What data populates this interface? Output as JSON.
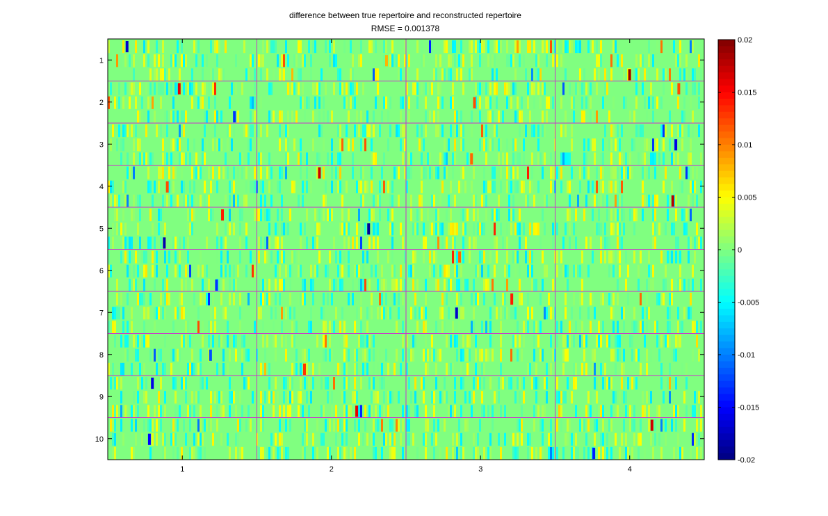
{
  "chart_data": {
    "type": "heatmap",
    "title": "difference between true repertoire and reconstructed repertoire",
    "subtitle": "RMSE = 0.001378",
    "xlabel": "",
    "ylabel": "",
    "x_categories": [
      "1",
      "2",
      "3",
      "4"
    ],
    "y_categories": [
      "1",
      "2",
      "3",
      "4",
      "5",
      "6",
      "7",
      "8",
      "9",
      "10"
    ],
    "clim": [
      -0.02,
      0.02
    ],
    "colormap": "jet",
    "colorbar_ticks": [
      "0.02",
      "0.015",
      "0.01",
      "0.005",
      "0",
      "-0.005",
      "-0.01",
      "-0.015",
      "-0.02"
    ],
    "separator_color": "#cc33cc",
    "background_value": 0,
    "notable_cells": [
      {
        "x": "1",
        "y": "1",
        "value": -0.017
      },
      {
        "x": "4",
        "y": "1",
        "value": 0.019
      },
      {
        "x": "2",
        "y": "1",
        "value": 0.008
      },
      {
        "x": "1",
        "y": "2",
        "value": 0.016
      },
      {
        "x": "1",
        "y": "2",
        "value": -0.013
      },
      {
        "x": "3",
        "y": "2",
        "value": 0.012
      },
      {
        "x": "4",
        "y": "2",
        "value": 0.012
      },
      {
        "x": "3",
        "y": "3",
        "value": 0.011
      },
      {
        "x": "4",
        "y": "3",
        "value": -0.016
      },
      {
        "x": "2",
        "y": "4",
        "value": 0.017
      },
      {
        "x": "4",
        "y": "4",
        "value": 0.018
      },
      {
        "x": "1",
        "y": "4",
        "value": 0.012
      },
      {
        "x": "1",
        "y": "5",
        "value": 0.014
      },
      {
        "x": "1",
        "y": "5",
        "value": -0.018
      },
      {
        "x": "2",
        "y": "5",
        "value": -0.019
      },
      {
        "x": "3",
        "y": "6",
        "value": 0.011
      },
      {
        "x": "1",
        "y": "6",
        "value": -0.013
      },
      {
        "x": "3",
        "y": "7",
        "value": -0.017
      },
      {
        "x": "3",
        "y": "7",
        "value": 0.014
      },
      {
        "x": "2",
        "y": "8",
        "value": 0.013
      },
      {
        "x": "1",
        "y": "8",
        "value": -0.012
      },
      {
        "x": "1",
        "y": "9",
        "value": -0.016
      },
      {
        "x": "2",
        "y": "9",
        "value": 0.016
      },
      {
        "x": "1",
        "y": "10",
        "value": -0.015
      },
      {
        "x": "4",
        "y": "10",
        "value": 0.017
      },
      {
        "x": "4",
        "y": "10",
        "value": -0.014
      }
    ]
  }
}
